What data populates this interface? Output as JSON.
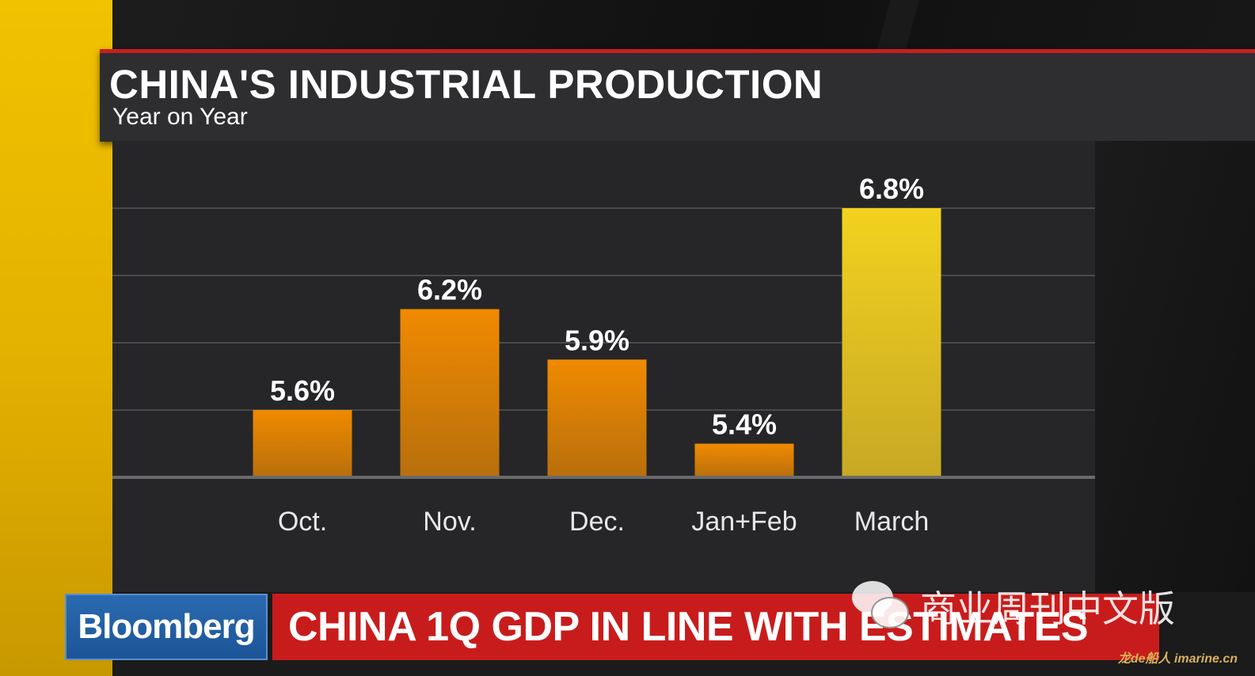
{
  "header": {
    "title": "CHINA'S INDUSTRIAL PRODUCTION",
    "subtitle": "Year on Year"
  },
  "chart_data": {
    "type": "bar",
    "title": "CHINA'S INDUSTRIAL PRODUCTION",
    "subtitle": "Year on Year",
    "categories": [
      "Oct.",
      "Nov.",
      "Dec.",
      "Jan+Feb",
      "March"
    ],
    "values": [
      5.6,
      6.2,
      5.9,
      5.4,
      6.8
    ],
    "value_labels": [
      "5.6%",
      "6.2%",
      "5.9%",
      "5.4%",
      "6.8%"
    ],
    "unit": "%",
    "ylim": [
      5.2,
      7.2
    ],
    "grid": true,
    "legend": "none",
    "colors": {
      "orange_top": "#f08a00",
      "orange_bottom": "#b86f0c",
      "highlight_top": "#f2d21e",
      "highlight_bottom": "#c8a824",
      "grid": "#4a4a4c",
      "baseline": "#6a6a6c"
    },
    "highlight_index": 4
  },
  "lower_third": {
    "brand": "Bloomberg",
    "headline": "CHINA 1Q GDP IN LINE WITH ESTIMATES",
    "brand_color": "#1f5a9c",
    "headline_color": "#c81c1c"
  },
  "watermark": {
    "icon": "wechat-icon",
    "text": "商业周刊中文版"
  },
  "corner_mark": "龙de船人 imarine.cn"
}
